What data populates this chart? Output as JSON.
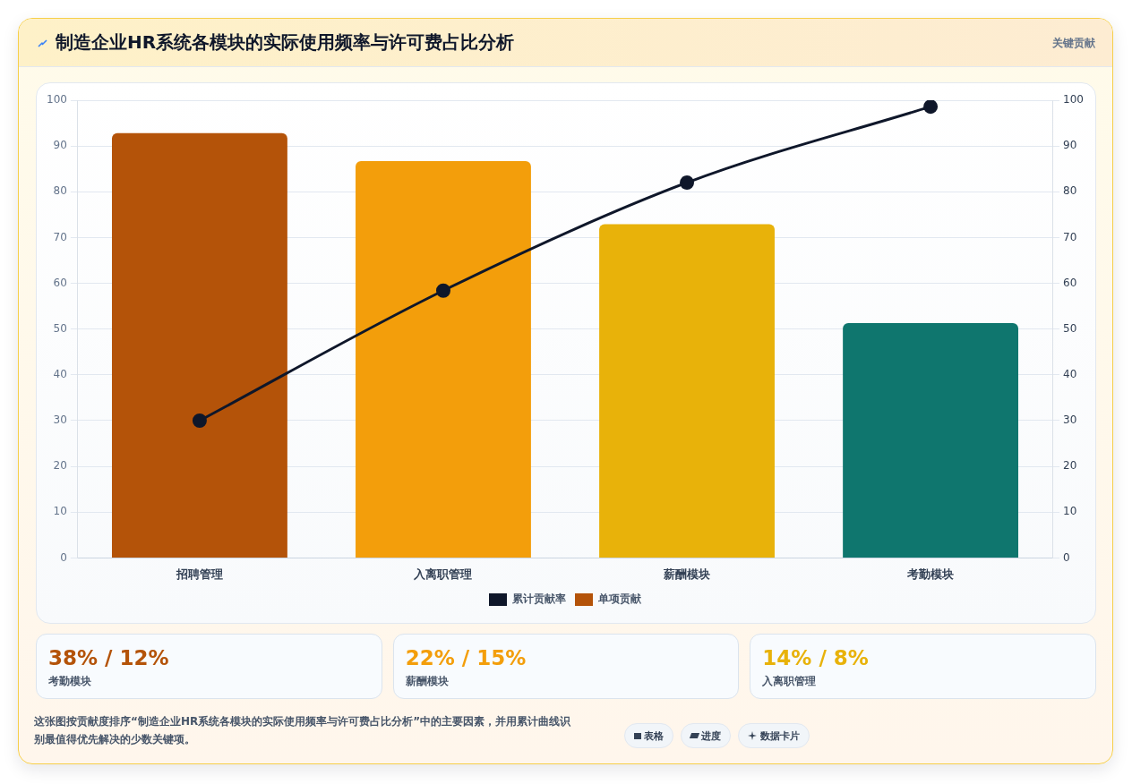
{
  "chart_data": {
    "type": "bar",
    "title": "制造企业HR系统各模块的实际使用频率与许可费占比分析",
    "categories": [
      "招聘管理",
      "入离职管理",
      "薪酬模块",
      "考勤模块"
    ],
    "series": [
      {
        "name": "累计贡献率",
        "type": "line",
        "axis": "y2",
        "color": "#0f172a",
        "values": [
          30,
          58.4,
          82,
          98.6
        ]
      },
      {
        "name": "单项贡献",
        "colors": [
          "#b45309",
          "#f39e0b",
          "#e8b20a",
          "#0f766e"
        ],
        "values": [
          92.8,
          86.7,
          72.9,
          51.3
        ]
      }
    ],
    "ylim": [
      0,
      100
    ],
    "yticks": [
      0,
      10,
      20,
      30,
      40,
      50,
      60,
      70,
      80,
      90,
      100
    ],
    "y2lim": [
      0,
      100
    ],
    "y2ticks": [
      0,
      10,
      20,
      30,
      40,
      50,
      60,
      70,
      80,
      90,
      100
    ],
    "grid": "y",
    "legend": "bottom",
    "marker": "circle",
    "line_style": "solid",
    "annotations": [
      "关键贡献",
      "38% / 12%",
      "考勤模块",
      "22% / 15%",
      "薪酬模块",
      "14% / 8%",
      "入离职管理",
      "这张图按贡献度排序“制造企业HR系统各模块的实际使用频率与许可费占比分析”中的主要因素，并用累计曲线识别最值得优先解决的少数关键项。",
      "表格",
      "进度",
      "数据卡片"
    ]
  }
}
